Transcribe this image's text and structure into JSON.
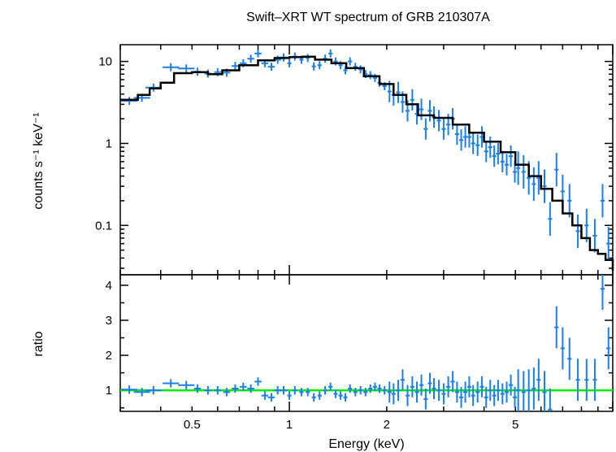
{
  "chart_data": [
    {
      "type": "scatter",
      "panel": "spectrum",
      "title": "Swift–XRT WT spectrum of GRB 210307A",
      "ylabel": "counts s⁻¹ keV⁻¹",
      "xscale": "log",
      "yscale": "log",
      "xlim": [
        0.3,
        10
      ],
      "ylim": [
        0.025,
        16
      ],
      "y_ticks": [
        {
          "value": 0.1,
          "label": "0.1"
        },
        {
          "value": 1,
          "label": "1"
        },
        {
          "value": 10,
          "label": "10"
        }
      ],
      "colors": {
        "data": "#1a7fe6",
        "model": "#000000"
      },
      "series": [
        {
          "role": "data",
          "points": [
            [
              0.32,
              3.3
            ],
            [
              0.35,
              3.6
            ],
            [
              0.38,
              4.8
            ],
            [
              0.43,
              8.5
            ],
            [
              0.48,
              8.2
            ],
            [
              0.52,
              7.5
            ],
            [
              0.56,
              7.1
            ],
            [
              0.6,
              7.4
            ],
            [
              0.64,
              7.3
            ],
            [
              0.68,
              8.8
            ],
            [
              0.72,
              9.5
            ],
            [
              0.76,
              10.8
            ],
            [
              0.8,
              12.5
            ],
            [
              0.84,
              9.5
            ],
            [
              0.88,
              8.6
            ],
            [
              0.92,
              10.5
            ],
            [
              0.96,
              11.2
            ],
            [
              1.0,
              9.5
            ],
            [
              1.04,
              11.5
            ],
            [
              1.09,
              10.5
            ],
            [
              1.14,
              11.0
            ],
            [
              1.19,
              8.7
            ],
            [
              1.24,
              9.0
            ],
            [
              1.29,
              10.8
            ],
            [
              1.34,
              12.5
            ],
            [
              1.39,
              10.0
            ],
            [
              1.44,
              9.0
            ],
            [
              1.49,
              7.8
            ],
            [
              1.54,
              10.0
            ],
            [
              1.6,
              8.6
            ],
            [
              1.66,
              8.0
            ],
            [
              1.72,
              7.0
            ],
            [
              1.78,
              6.8
            ],
            [
              1.84,
              6.3
            ],
            [
              1.9,
              5.5
            ],
            [
              1.97,
              5.0
            ],
            [
              2.04,
              4.3
            ],
            [
              2.1,
              3.9
            ],
            [
              2.17,
              4.2
            ],
            [
              2.24,
              3.2
            ],
            [
              2.32,
              2.5
            ],
            [
              2.4,
              3.4
            ],
            [
              2.48,
              2.3
            ],
            [
              2.56,
              2.6
            ],
            [
              2.64,
              1.5
            ],
            [
              2.72,
              2.5
            ],
            [
              2.8,
              2.1
            ],
            [
              2.9,
              1.9
            ],
            [
              3.0,
              1.5
            ],
            [
              3.1,
              1.7
            ],
            [
              3.2,
              2.0
            ],
            [
              3.3,
              1.3
            ],
            [
              3.4,
              1.1
            ],
            [
              3.5,
              1.2
            ],
            [
              3.6,
              1.2
            ],
            [
              3.7,
              1.0
            ],
            [
              3.82,
              0.95
            ],
            [
              3.94,
              1.2
            ],
            [
              4.06,
              0.8
            ],
            [
              4.18,
              0.9
            ],
            [
              4.3,
              0.7
            ],
            [
              4.42,
              0.75
            ],
            [
              4.56,
              0.6
            ],
            [
              4.7,
              0.55
            ],
            [
              4.84,
              0.7
            ],
            [
              4.98,
              0.45
            ],
            [
              5.1,
              0.5
            ],
            [
              5.3,
              0.45
            ],
            [
              5.5,
              0.38
            ],
            [
              5.7,
              0.32
            ],
            [
              5.9,
              0.38
            ],
            [
              6.15,
              0.3
            ],
            [
              6.4,
              0.12
            ],
            [
              6.7,
              0.48
            ],
            [
              7.0,
              0.26
            ],
            [
              7.35,
              0.2
            ],
            [
              7.8,
              0.085
            ],
            [
              8.3,
              0.1
            ],
            [
              8.8,
              0.075
            ],
            [
              9.3,
              0.2
            ],
            [
              9.7,
              0.06
            ]
          ]
        },
        {
          "role": "model",
          "x": [
            0.3,
            0.34,
            0.37,
            0.4,
            0.44,
            0.5,
            0.56,
            0.62,
            0.7,
            0.8,
            0.9,
            1.0,
            1.1,
            1.2,
            1.35,
            1.5,
            1.7,
            1.9,
            2.1,
            2.3,
            2.5,
            2.8,
            3.2,
            3.6,
            4.0,
            4.5,
            5.0,
            5.5,
            6.0,
            6.5,
            7.0,
            7.5,
            8.0,
            8.5,
            9.0,
            9.5,
            10.0
          ],
          "y": [
            3.4,
            3.9,
            4.7,
            5.5,
            7.2,
            7.4,
            7.0,
            7.8,
            9.0,
            10.3,
            11.0,
            11.3,
            11.4,
            10.5,
            9.5,
            8.3,
            6.6,
            5.3,
            3.9,
            3.0,
            2.2,
            2.05,
            1.7,
            1.35,
            1.05,
            0.78,
            0.55,
            0.4,
            0.28,
            0.2,
            0.14,
            0.1,
            0.07,
            0.05,
            0.045,
            0.038,
            0.028
          ]
        }
      ]
    },
    {
      "type": "scatter",
      "panel": "ratio",
      "xlabel": "Energy (keV)",
      "ylabel": "ratio",
      "xscale": "log",
      "xlim": [
        0.3,
        10
      ],
      "ylim": [
        0.4,
        4.3
      ],
      "y_ticks": [
        {
          "value": 1,
          "label": "1"
        },
        {
          "value": 2,
          "label": "2"
        },
        {
          "value": 3,
          "label": "3"
        },
        {
          "value": 4,
          "label": "4"
        }
      ],
      "x_ticks": [
        {
          "value": 0.5,
          "label": "0.5"
        },
        {
          "value": 1,
          "label": "1"
        },
        {
          "value": 2,
          "label": "2"
        },
        {
          "value": 5,
          "label": "5"
        }
      ],
      "reference_line": 1,
      "colors": {
        "data": "#1a7fe6",
        "reference": "#00ee00"
      },
      "points": [
        [
          0.32,
          1.02
        ],
        [
          0.35,
          0.95
        ],
        [
          0.38,
          1.0
        ],
        [
          0.43,
          1.2
        ],
        [
          0.48,
          1.15
        ],
        [
          0.52,
          1.05
        ],
        [
          0.56,
          1.0
        ],
        [
          0.6,
          1.0
        ],
        [
          0.64,
          0.95
        ],
        [
          0.68,
          1.05
        ],
        [
          0.72,
          1.1
        ],
        [
          0.76,
          1.05
        ],
        [
          0.8,
          1.25
        ],
        [
          0.84,
          0.85
        ],
        [
          0.88,
          0.8
        ],
        [
          0.92,
          1.0
        ],
        [
          0.96,
          1.0
        ],
        [
          1.0,
          0.85
        ],
        [
          1.04,
          1.0
        ],
        [
          1.09,
          0.95
        ],
        [
          1.14,
          0.95
        ],
        [
          1.19,
          0.8
        ],
        [
          1.24,
          0.85
        ],
        [
          1.29,
          1.0
        ],
        [
          1.34,
          1.1
        ],
        [
          1.39,
          0.9
        ],
        [
          1.44,
          0.85
        ],
        [
          1.49,
          0.8
        ],
        [
          1.54,
          1.05
        ],
        [
          1.6,
          0.95
        ],
        [
          1.66,
          1.0
        ],
        [
          1.72,
          0.95
        ],
        [
          1.78,
          1.05
        ],
        [
          1.84,
          1.1
        ],
        [
          1.9,
          1.05
        ],
        [
          1.97,
          1.0
        ],
        [
          2.04,
          0.95
        ],
        [
          2.1,
          0.9
        ],
        [
          2.17,
          1.0
        ],
        [
          2.24,
          1.3
        ],
        [
          2.32,
          0.85
        ],
        [
          2.4,
          1.1
        ],
        [
          2.48,
          0.95
        ],
        [
          2.56,
          1.15
        ],
        [
          2.64,
          0.75
        ],
        [
          2.72,
          1.2
        ],
        [
          2.8,
          1.05
        ],
        [
          2.9,
          1.0
        ],
        [
          3.0,
          0.9
        ],
        [
          3.1,
          1.1
        ],
        [
          3.2,
          1.25
        ],
        [
          3.3,
          0.95
        ],
        [
          3.4,
          0.8
        ],
        [
          3.5,
          0.95
        ],
        [
          3.6,
          1.1
        ],
        [
          3.7,
          0.85
        ],
        [
          3.82,
          0.95
        ],
        [
          3.94,
          1.1
        ],
        [
          4.06,
          0.8
        ],
        [
          4.18,
          1.0
        ],
        [
          4.3,
          0.85
        ],
        [
          4.42,
          1.0
        ],
        [
          4.56,
          0.9
        ],
        [
          4.7,
          0.95
        ],
        [
          4.84,
          1.15
        ],
        [
          4.98,
          0.8
        ],
        [
          5.1,
          1.0
        ],
        [
          5.3,
          0.95
        ],
        [
          5.5,
          1.0
        ],
        [
          5.7,
          1.05
        ],
        [
          5.9,
          1.3
        ],
        [
          6.15,
          0.95
        ],
        [
          6.4,
          0.45
        ],
        [
          6.7,
          2.8
        ],
        [
          7.0,
          2.2
        ],
        [
          7.35,
          1.9
        ],
        [
          7.8,
          1.3
        ],
        [
          8.3,
          1.3
        ],
        [
          8.8,
          1.3
        ],
        [
          9.3,
          3.9
        ],
        [
          9.7,
          2.2
        ]
      ]
    }
  ]
}
